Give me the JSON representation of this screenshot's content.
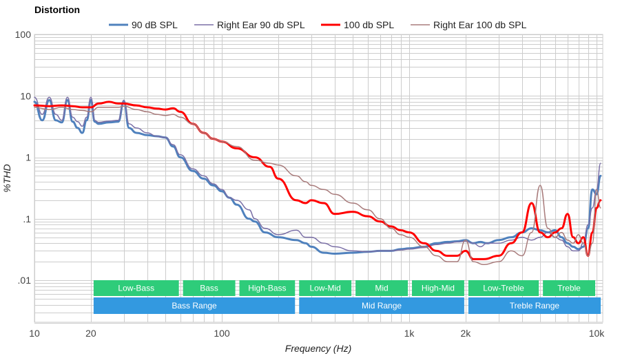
{
  "chart_data": {
    "type": "line",
    "title": "Distortion",
    "xlabel": "Frequency (Hz)",
    "ylabel": "%THD",
    "x_scale": "log",
    "y_scale": "log",
    "xlim": [
      10,
      10700
    ],
    "ylim": [
      0.002,
      100
    ],
    "grid": true,
    "legend_position": "top-center",
    "x_ticks": [
      {
        "value": 10,
        "label": "10"
      },
      {
        "value": 20,
        "label": "20"
      },
      {
        "value": 100,
        "label": "100"
      },
      {
        "value": 1000,
        "label": "1k"
      },
      {
        "value": 2000,
        "label": "2k"
      },
      {
        "value": 10000,
        "label": "10k"
      }
    ],
    "y_ticks": [
      {
        "value": 100,
        "label": "100"
      },
      {
        "value": 10,
        "label": "10"
      },
      {
        "value": 1,
        "label": "1"
      },
      {
        "value": 0.1,
        "label": ".1"
      },
      {
        "value": 0.01,
        "label": ".01"
      }
    ],
    "series": [
      {
        "name": "90 dB SPL",
        "color": "#4f81bd",
        "width": 3,
        "x": [
          10,
          11,
          12,
          13,
          14,
          15,
          16,
          17,
          18,
          19,
          20,
          21,
          22,
          25,
          28,
          30,
          32,
          35,
          40,
          45,
          50,
          55,
          60,
          70,
          80,
          90,
          100,
          110,
          120,
          140,
          150,
          170,
          200,
          250,
          280,
          300,
          350,
          400,
          500,
          600,
          700,
          800,
          900,
          1000,
          1200,
          1400,
          1600,
          1800,
          2000,
          2200,
          2400,
          2600,
          3000,
          3500,
          4000,
          4500,
          5000,
          5500,
          6000,
          6500,
          7000,
          7500,
          8000,
          8500,
          9000,
          9500,
          10000,
          10500
        ],
        "values": [
          8.0,
          4.0,
          8.5,
          4.0,
          3.7,
          8.5,
          3.8,
          3.0,
          2.5,
          4.0,
          8.5,
          3.8,
          3.5,
          3.7,
          3.8,
          8.0,
          3.0,
          2.5,
          2.3,
          2.2,
          2.1,
          1.5,
          1.0,
          0.6,
          0.45,
          0.35,
          0.28,
          0.22,
          0.17,
          0.1,
          0.09,
          0.06,
          0.05,
          0.045,
          0.04,
          0.035,
          0.028,
          0.027,
          0.028,
          0.029,
          0.03,
          0.03,
          0.032,
          0.033,
          0.035,
          0.04,
          0.042,
          0.043,
          0.045,
          0.04,
          0.042,
          0.04,
          0.045,
          0.05,
          0.06,
          0.07,
          0.065,
          0.06,
          0.065,
          0.05,
          0.04,
          0.035,
          0.032,
          0.035,
          0.07,
          0.3,
          0.25,
          0.5
        ]
      },
      {
        "name": "Right Ear 90 db SPL",
        "color": "#7a6fa6",
        "width": 1.5,
        "x": [
          10,
          11,
          12,
          13,
          14,
          15,
          16,
          17,
          18,
          19,
          20,
          21,
          22,
          25,
          28,
          30,
          32,
          35,
          40,
          45,
          50,
          55,
          60,
          70,
          80,
          90,
          100,
          110,
          120,
          140,
          150,
          170,
          200,
          250,
          280,
          300,
          350,
          400,
          500,
          600,
          700,
          800,
          900,
          1000,
          1200,
          1400,
          1600,
          1800,
          2000,
          2200,
          2400,
          2600,
          3000,
          3500,
          4000,
          4500,
          5000,
          5500,
          6000,
          6500,
          7000,
          7500,
          8000,
          8500,
          9000,
          9500,
          10000,
          10500
        ],
        "values": [
          9.5,
          5.0,
          9.5,
          5.0,
          4.0,
          9.5,
          4.5,
          3.8,
          3.2,
          4.5,
          9.5,
          4.0,
          3.7,
          3.9,
          4.0,
          8.5,
          3.5,
          3.0,
          2.5,
          2.2,
          2.1,
          1.6,
          1.1,
          0.65,
          0.5,
          0.37,
          0.3,
          0.22,
          0.2,
          0.14,
          0.1,
          0.07,
          0.055,
          0.065,
          0.05,
          0.05,
          0.04,
          0.035,
          0.03,
          0.029,
          0.03,
          0.03,
          0.031,
          0.032,
          0.034,
          0.038,
          0.04,
          0.042,
          0.043,
          0.04,
          0.035,
          0.04,
          0.04,
          0.045,
          0.05,
          0.045,
          0.05,
          0.06,
          0.05,
          0.045,
          0.035,
          0.03,
          0.03,
          0.04,
          0.08,
          0.15,
          0.3,
          0.8
        ]
      },
      {
        "name": "100 db SPL",
        "color": "#ff0000",
        "width": 3,
        "x": [
          10,
          12,
          14,
          16,
          18,
          20,
          22,
          25,
          28,
          30,
          35,
          40,
          45,
          50,
          55,
          60,
          70,
          80,
          90,
          100,
          120,
          150,
          180,
          200,
          250,
          280,
          300,
          350,
          400,
          500,
          600,
          700,
          800,
          900,
          1000,
          1200,
          1400,
          1600,
          1800,
          2000,
          2200,
          2500,
          3000,
          3500,
          4000,
          4500,
          5000,
          5500,
          6000,
          6500,
          7000,
          7500,
          8000,
          8500,
          9000,
          9500,
          10000,
          10500
        ],
        "values": [
          7.0,
          6.8,
          7.0,
          6.8,
          6.5,
          6.5,
          7.5,
          8.0,
          7.5,
          7.5,
          7.0,
          6.5,
          6.2,
          6.0,
          6.3,
          5.5,
          3.5,
          2.5,
          2.0,
          1.8,
          1.4,
          1.0,
          0.7,
          0.45,
          0.2,
          0.18,
          0.2,
          0.18,
          0.12,
          0.13,
          0.11,
          0.09,
          0.075,
          0.065,
          0.06,
          0.04,
          0.03,
          0.025,
          0.025,
          0.03,
          0.022,
          0.022,
          0.025,
          0.04,
          0.06,
          0.18,
          0.06,
          0.05,
          0.06,
          0.07,
          0.12,
          0.05,
          0.04,
          0.05,
          0.025,
          0.06,
          0.15,
          0.2
        ]
      },
      {
        "name": "Right Ear 100 db SPL",
        "color": "#a87b7b",
        "width": 1.5,
        "x": [
          10,
          12,
          14,
          16,
          18,
          20,
          22,
          25,
          28,
          30,
          35,
          40,
          45,
          50,
          55,
          60,
          70,
          80,
          90,
          100,
          120,
          150,
          180,
          200,
          250,
          280,
          300,
          350,
          400,
          500,
          600,
          700,
          800,
          900,
          1000,
          1200,
          1400,
          1600,
          1800,
          2000,
          2200,
          2500,
          3000,
          3500,
          4000,
          4500,
          5000,
          5500,
          6000,
          6500,
          7000,
          7500,
          8000,
          8500,
          9000,
          9500,
          10000,
          10500
        ],
        "values": [
          6.5,
          6.0,
          6.5,
          6.0,
          5.8,
          5.5,
          6.5,
          6.5,
          6.5,
          6.8,
          6.0,
          5.5,
          5.0,
          4.8,
          5.0,
          4.5,
          3.5,
          2.5,
          2.0,
          1.8,
          1.5,
          0.9,
          0.8,
          0.75,
          0.5,
          0.4,
          0.35,
          0.3,
          0.25,
          0.18,
          0.14,
          0.1,
          0.07,
          0.055,
          0.05,
          0.035,
          0.025,
          0.02,
          0.02,
          0.045,
          0.02,
          0.018,
          0.02,
          0.03,
          0.025,
          0.06,
          0.35,
          0.07,
          0.05,
          0.06,
          0.045,
          0.04,
          0.055,
          0.04,
          0.025,
          0.04,
          0.3,
          0.15
        ]
      }
    ],
    "bands": [
      {
        "label": "Low-Bass",
        "from": 20,
        "to": 60,
        "color": "#2ecc7a",
        "row": 1
      },
      {
        "label": "Bass",
        "from": 60,
        "to": 120,
        "color": "#2ecc7a",
        "row": 1
      },
      {
        "label": "High-Bass",
        "from": 120,
        "to": 250,
        "color": "#2ecc7a",
        "row": 1
      },
      {
        "label": "Low-Mid",
        "from": 250,
        "to": 500,
        "color": "#2ecc7a",
        "row": 1
      },
      {
        "label": "Mid",
        "from": 500,
        "to": 1000,
        "color": "#2ecc7a",
        "row": 1
      },
      {
        "label": "High-Mid",
        "from": 1000,
        "to": 2000,
        "color": "#2ecc7a",
        "row": 1
      },
      {
        "label": "Low-Treble",
        "from": 2000,
        "to": 5000,
        "color": "#2ecc7a",
        "row": 1
      },
      {
        "label": "Treble",
        "from": 5000,
        "to": 10000,
        "color": "#2ecc7a",
        "row": 1
      },
      {
        "label": "Bass Range",
        "from": 20,
        "to": 250,
        "color": "#3399e0",
        "row": 2
      },
      {
        "label": "Mid Range",
        "from": 250,
        "to": 2000,
        "color": "#3399e0",
        "row": 2
      },
      {
        "label": "Treble Range",
        "from": 2000,
        "to": 10700,
        "color": "#3399e0",
        "row": 2
      }
    ]
  }
}
